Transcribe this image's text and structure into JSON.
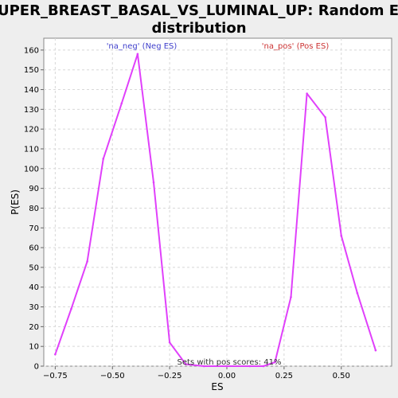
{
  "chart_data": {
    "type": "line",
    "title_line1": "HUPER_BREAST_BASAL_VS_LUMINAL_UP: Random ES",
    "title_line2": "distribution",
    "xlabel": "ES",
    "ylabel": "P(ES)",
    "xlim": [
      -0.8,
      0.72
    ],
    "ylim": [
      0,
      166
    ],
    "x_ticks": [
      -0.75,
      -0.5,
      -0.25,
      0.0,
      0.25,
      0.5
    ],
    "x_tick_labels": [
      "−0.75",
      "−0.50",
      "−0.25",
      "0.00",
      "0.25",
      "0.50"
    ],
    "y_ticks": [
      0,
      10,
      20,
      30,
      40,
      50,
      60,
      70,
      80,
      90,
      100,
      110,
      120,
      130,
      140,
      150,
      160
    ],
    "grid": true,
    "series": [
      {
        "color": "#e040fb",
        "x": [
          -0.75,
          -0.68,
          -0.61,
          -0.54,
          -0.46,
          -0.39,
          -0.32,
          -0.25,
          -0.18,
          -0.1,
          0.0,
          0.1,
          0.16,
          0.21,
          0.28,
          0.35,
          0.43,
          0.5,
          0.57,
          0.65
        ],
        "y": [
          6,
          29,
          53,
          105,
          133,
          158,
          93,
          12,
          1,
          0,
          0,
          0,
          0,
          2,
          35,
          138,
          126,
          66,
          37,
          8
        ]
      }
    ],
    "annotations": {
      "neg_label": "'na_neg' (Neg ES)",
      "pos_label": "'na_pos' (Pos ES)",
      "neg_color": "#4040cc",
      "pos_color": "#cc3333",
      "sets_with_pos": "Sets with pos scores: 41%"
    }
  }
}
